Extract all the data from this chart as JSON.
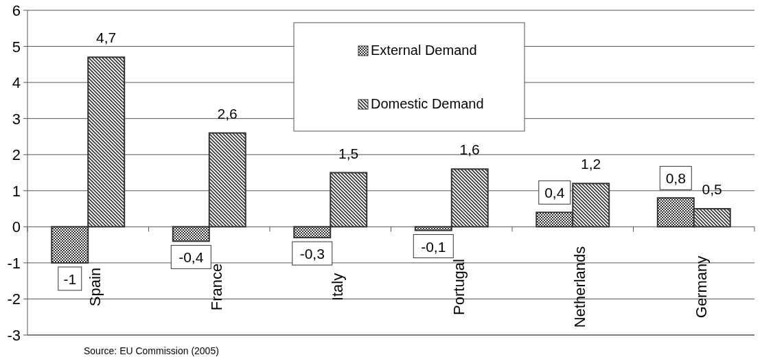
{
  "chart_data": {
    "type": "bar",
    "categories": [
      "Spain",
      "France",
      "Italy",
      "Portugal",
      "Netherlands",
      "Germany"
    ],
    "series": [
      {
        "name": "External Demand",
        "color": "#333333",
        "values": [
          -1,
          -0.4,
          -0.3,
          -0.1,
          0.4,
          0.8
        ],
        "value_labels": [
          "-1",
          "-0,4",
          "-0,3",
          "-0,1",
          "0,4",
          "0,8"
        ]
      },
      {
        "name": "Domestic Demand",
        "color": "#333333",
        "values": [
          4.7,
          2.6,
          1.5,
          1.6,
          1.2,
          0.5
        ],
        "value_labels": [
          "4,7",
          "2,6",
          "1,5",
          "1,6",
          "1,2",
          "0,5"
        ]
      }
    ],
    "ylim": [
      -3,
      6
    ],
    "yticks": [
      -3,
      -2,
      -1,
      0,
      1,
      2,
      3,
      4,
      5,
      6
    ],
    "grid": "y",
    "legend": "top",
    "annotations": [
      "Source: EU Commission (2005)"
    ]
  }
}
